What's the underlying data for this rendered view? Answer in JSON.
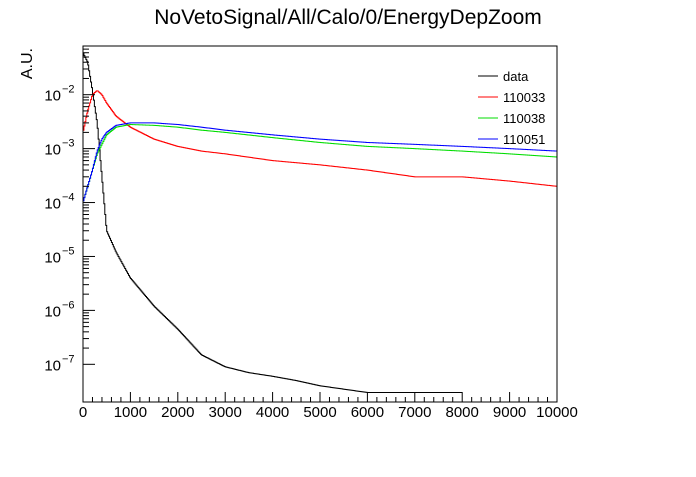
{
  "chart_data": {
    "type": "line",
    "title": "NoVetoSignal/All/Calo/0/EnergyDepZoom",
    "xlabel": "",
    "ylabel": "A.U.",
    "xlim": [
      0,
      10000
    ],
    "ylim": [
      2e-08,
      0.08
    ],
    "y_scale": "log",
    "grid": false,
    "legend_position": "top-right",
    "x_ticks": [
      "0",
      "1000",
      "2000",
      "3000",
      "4000",
      "5000",
      "6000",
      "7000",
      "8000",
      "9000",
      "10000"
    ],
    "y_ticks": [
      {
        "value": 1e-07,
        "base": "10",
        "exp": "−7"
      },
      {
        "value": 1e-06,
        "base": "10",
        "exp": "−6"
      },
      {
        "value": 1e-05,
        "base": "10",
        "exp": "−5"
      },
      {
        "value": 0.0001,
        "base": "10",
        "exp": "−4"
      },
      {
        "value": 0.001,
        "base": "10",
        "exp": "−3"
      },
      {
        "value": 0.01,
        "base": "10",
        "exp": "−2"
      }
    ],
    "series": [
      {
        "name": "data",
        "color": "#000000",
        "x": [
          0,
          100,
          200,
          300,
          400,
          500,
          700,
          1000,
          1500,
          2000,
          2500,
          3000,
          3500,
          4000,
          4500,
          5000,
          6000,
          7000,
          8000
        ],
        "values": [
          0.06,
          0.04,
          0.012,
          0.003,
          0.0003,
          3e-05,
          1.2e-05,
          4e-06,
          1.2e-06,
          4.5e-07,
          1.5e-07,
          9e-08,
          7e-08,
          6e-08,
          5e-08,
          4e-08,
          3e-08,
          3e-08,
          3e-08
        ]
      },
      {
        "name": "110033",
        "color": "#ff0000",
        "x": [
          0,
          100,
          200,
          300,
          400,
          500,
          700,
          1000,
          1500,
          2000,
          2500,
          3000,
          4000,
          5000,
          6000,
          7000,
          8000,
          9000,
          10000
        ],
        "values": [
          0.002,
          0.005,
          0.01,
          0.012,
          0.01,
          0.007,
          0.004,
          0.0025,
          0.0015,
          0.0011,
          0.0009,
          0.0008,
          0.0006,
          0.0005,
          0.0004,
          0.0003,
          0.0003,
          0.00025,
          0.0002
        ]
      },
      {
        "name": "110038",
        "color": "#00dd00",
        "x": [
          0,
          100,
          200,
          300,
          400,
          500,
          700,
          1000,
          1500,
          2000,
          2500,
          3000,
          4000,
          5000,
          6000,
          7000,
          8000,
          9000,
          10000
        ],
        "values": [
          0.0001,
          0.0002,
          0.0004,
          0.0008,
          0.0012,
          0.0018,
          0.0025,
          0.0028,
          0.0027,
          0.0025,
          0.0022,
          0.002,
          0.0016,
          0.0013,
          0.0011,
          0.001,
          0.0009,
          0.0008,
          0.0007
        ]
      },
      {
        "name": "110051",
        "color": "#0000ff",
        "x": [
          0,
          100,
          200,
          300,
          400,
          500,
          700,
          1000,
          1500,
          2000,
          2500,
          3000,
          4000,
          5000,
          6000,
          7000,
          8000,
          9000,
          10000
        ],
        "values": [
          0.0001,
          0.0002,
          0.0004,
          0.0009,
          0.0015,
          0.002,
          0.0027,
          0.003,
          0.003,
          0.0028,
          0.0025,
          0.0022,
          0.0018,
          0.0015,
          0.0013,
          0.0012,
          0.0011,
          0.001,
          0.0009
        ]
      }
    ]
  }
}
